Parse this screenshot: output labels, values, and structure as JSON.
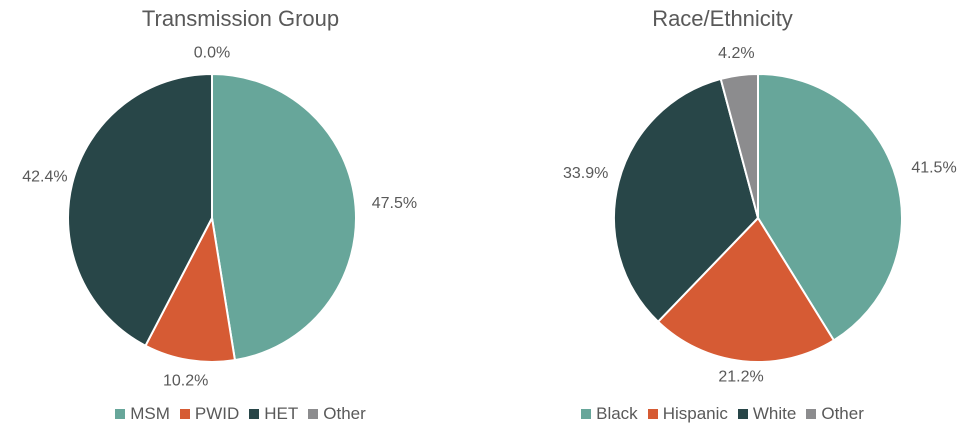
{
  "chart_data": [
    {
      "type": "pie",
      "title": "Transmission Group",
      "slices": [
        {
          "name": "MSM",
          "value": 47.5,
          "label": "47.5%",
          "color": "#67a69a"
        },
        {
          "name": "PWID",
          "value": 10.2,
          "label": "10.2%",
          "color": "#d65b34"
        },
        {
          "name": "HET",
          "value": 42.4,
          "label": "42.4%",
          "color": "#284648"
        },
        {
          "name": "Other",
          "value": 0.0,
          "label": "0.0%",
          "color": "#8c8c8e"
        }
      ],
      "legend_position": "bottom"
    },
    {
      "type": "pie",
      "title": "Race/Ethnicity",
      "slices": [
        {
          "name": "Black",
          "value": 41.5,
          "label": "41.5%",
          "color": "#67a69a"
        },
        {
          "name": "Hispanic",
          "value": 21.2,
          "label": "21.2%",
          "color": "#d65b34"
        },
        {
          "name": "White",
          "value": 33.9,
          "label": "33.9%",
          "color": "#284648"
        },
        {
          "name": "Other",
          "value": 4.2,
          "label": "4.2%",
          "color": "#8c8c8e"
        }
      ],
      "legend_position": "bottom"
    }
  ]
}
